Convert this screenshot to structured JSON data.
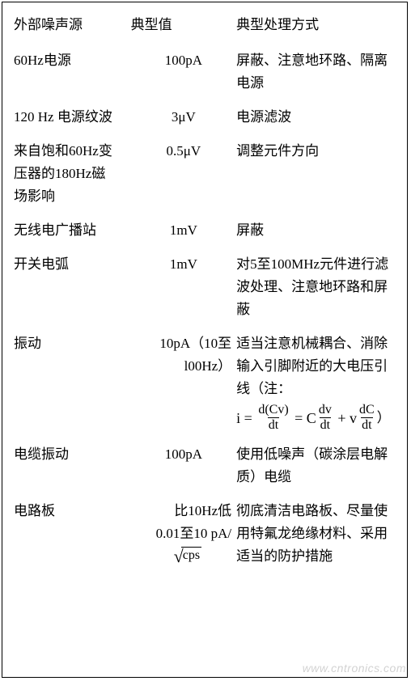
{
  "header": {
    "source": "外部噪声源",
    "value": "典型值",
    "method": "典型处理方式"
  },
  "rows": [
    {
      "source": "60Hz电源",
      "value": "100pA",
      "method": "屏蔽、注意地环路、隔离电源"
    },
    {
      "source": "120 Hz  电源纹波",
      "value": "3μV",
      "method": "电源滤波"
    },
    {
      "source_l1": "来自饱和60Hz变",
      "source_l2": "压器的180Hz磁",
      "source_l3": "场影响",
      "value": "0.5μV",
      "method": "调整元件方向"
    },
    {
      "source": "无线电广播站",
      "value": "1mV",
      "method": "屏蔽"
    },
    {
      "source": "开关电弧",
      "value": "1mV",
      "method": "对5至100MHz元件进行滤波处理、注意地环路和屏蔽"
    },
    {
      "source": "振动",
      "value_l1": "10pA（10至",
      "value_l2": "l00Hz）",
      "method_l1": "适当注意机械耦合、消除输入引脚附近的大电压引线（注：",
      "formula": {
        "lhs_var": "i",
        "f1_num": "d(Cv)",
        "f1_den": "dt",
        "coef2": "C",
        "f2_num": "dv",
        "f2_den": "dt",
        "coef3": "v",
        "f3_num": "dC",
        "f3_den": "dt",
        "close": "）"
      }
    },
    {
      "source": "电缆振动",
      "value": "100pA",
      "method": "使用低噪声（碳涂层电解质）电缆"
    },
    {
      "source": "电路板",
      "value_l1": "比10Hz低",
      "value_l2": "0.01至10 pA/",
      "sqrt_arg": "cps",
      "method": "彻底清洁电路板、尽量使用特氟龙绝缘材料、采用适当的防护措施"
    }
  ],
  "watermark": "www.cntronics.com"
}
